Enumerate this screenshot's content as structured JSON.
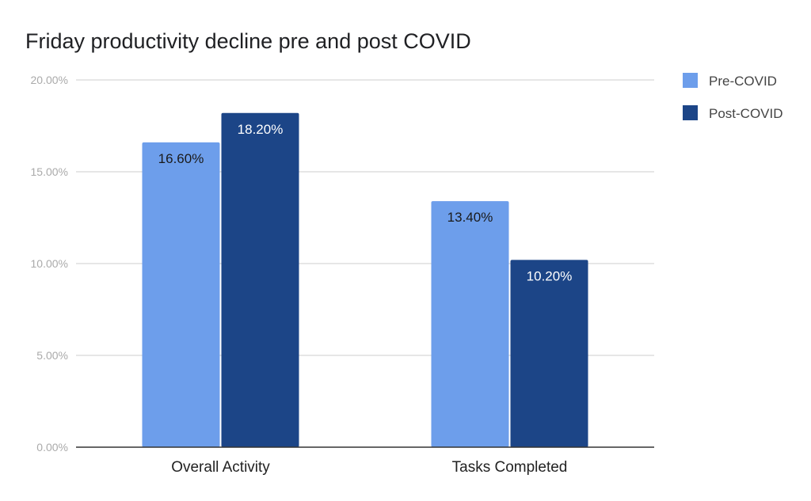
{
  "chart_data": {
    "type": "bar",
    "title": "Friday productivity decline pre and post COVID",
    "xlabel": "",
    "ylabel": "",
    "categories": [
      "Overall Activity",
      "Tasks Completed"
    ],
    "series": [
      {
        "name": "Pre-COVID",
        "color": "#6d9eeb",
        "values": [
          16.6,
          13.4
        ],
        "labels": [
          "16.60%",
          "13.40%"
        ],
        "label_color": "#1a1a1a"
      },
      {
        "name": "Post-COVID",
        "color": "#1c4587",
        "values": [
          18.2,
          10.2
        ],
        "labels": [
          "18.20%",
          "10.20%"
        ],
        "label_color": "#ffffff"
      }
    ],
    "ylim": [
      0,
      20
    ],
    "yticks": [
      0,
      5,
      10,
      15,
      20
    ],
    "ytick_labels": [
      "0.00%",
      "5.00%",
      "10.00%",
      "15.00%",
      "20.00%"
    ],
    "grid": true,
    "legend": "right"
  }
}
